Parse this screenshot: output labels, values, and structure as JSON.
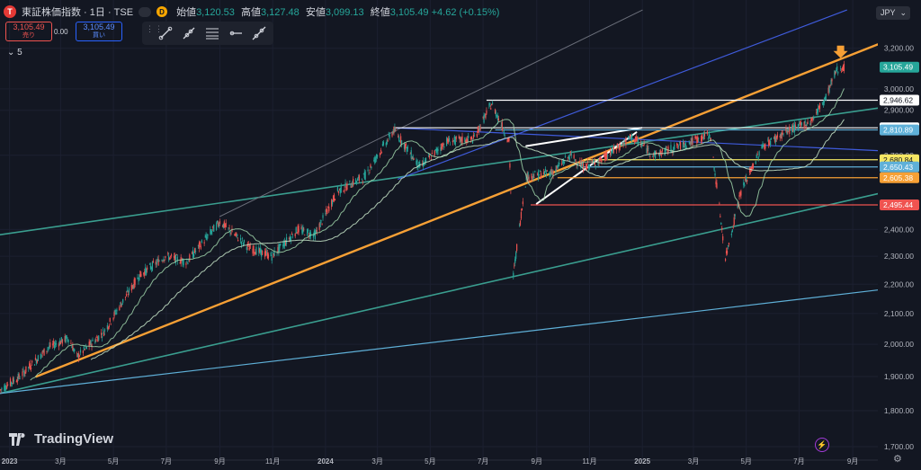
{
  "header": {
    "logo_letter": "T",
    "symbol": "東証株価指数 · 1日 · TSE",
    "interval_badge": "D",
    "ohlc": [
      {
        "label": "始値",
        "value": "3,120.53"
      },
      {
        "label": "高値",
        "value": "3,127.48"
      },
      {
        "label": "安値",
        "value": "3,099.13"
      },
      {
        "label": "終値",
        "value": "3,105.49"
      }
    ],
    "change": "+4.62 (+0.15%)"
  },
  "trade": {
    "sell_price": "3,105.49",
    "sell_label": "売り",
    "spread": "0.00",
    "buy_price": "3,105.49",
    "buy_label": "買い"
  },
  "indicator_toggle": "5",
  "toolbar": {
    "grip": "⋮⋮",
    "tools": [
      "trend-line-tool",
      "ray-tool",
      "horizontal-lines-tool",
      "horizontal-ray-tool",
      "extended-line-tool"
    ]
  },
  "currency": "JPY",
  "brand": "TradingView",
  "colors": {
    "background": "#131722",
    "up": "#26a69a",
    "down": "#ef5350",
    "orange": "#f7a035",
    "teal": "#3a9e8f",
    "blue": "#3f5bdb"
  },
  "chart_data": {
    "type": "candlestick",
    "y_scale": "log",
    "ylim": [
      1700,
      3240
    ],
    "y_ticks": [
      {
        "value": 3200,
        "label": "3,200.00"
      },
      {
        "value": 3000,
        "label": "3,000.00"
      },
      {
        "value": 2900,
        "label": "2,900.00"
      },
      {
        "value": 2700,
        "label": "2,700.00"
      },
      {
        "value": 2400,
        "label": "2,400.00"
      },
      {
        "value": 2300,
        "label": "2,300.00"
      },
      {
        "value": 2200,
        "label": "2,200.00"
      },
      {
        "value": 2100,
        "label": "2,100.00"
      },
      {
        "value": 2000,
        "label": "2,000.00"
      },
      {
        "value": 1900,
        "label": "1,900.00"
      },
      {
        "value": 1800,
        "label": "1,800.00"
      },
      {
        "value": 1700,
        "label": "1,700.00"
      }
    ],
    "x_ticks": [
      {
        "date": "2023-01-01",
        "label": "2023",
        "bold": true
      },
      {
        "date": "2023-03-01",
        "label": "3月"
      },
      {
        "date": "2023-05-01",
        "label": "5月"
      },
      {
        "date": "2023-07-01",
        "label": "7月"
      },
      {
        "date": "2023-09-01",
        "label": "9月"
      },
      {
        "date": "2023-11-01",
        "label": "11月"
      },
      {
        "date": "2024-01-01",
        "label": "2024",
        "bold": true
      },
      {
        "date": "2024-03-01",
        "label": "3月"
      },
      {
        "date": "2024-05-01",
        "label": "5月"
      },
      {
        "date": "2024-07-01",
        "label": "7月"
      },
      {
        "date": "2024-09-01",
        "label": "9月"
      },
      {
        "date": "2024-11-01",
        "label": "11月"
      },
      {
        "date": "2025-01-01",
        "label": "2025",
        "bold": true
      },
      {
        "date": "2025-03-01",
        "label": "3月"
      },
      {
        "date": "2025-05-01",
        "label": "5月"
      },
      {
        "date": "2025-07-01",
        "label": "7月"
      },
      {
        "date": "2025-09-01",
        "label": "9月"
      }
    ],
    "xlim": [
      "2022-12-21",
      "2025-09-30"
    ],
    "close_path": [
      [
        "2022-12-21",
        1860
      ],
      [
        "2023-01-13",
        1900
      ],
      [
        "2023-02-15",
        1990
      ],
      [
        "2023-03-10",
        2020
      ],
      [
        "2023-03-20",
        1960
      ],
      [
        "2023-04-20",
        2040
      ],
      [
        "2023-05-31",
        2230
      ],
      [
        "2023-06-30",
        2300
      ],
      [
        "2023-07-25",
        2280
      ],
      [
        "2023-09-01",
        2430
      ],
      [
        "2023-10-05",
        2330
      ],
      [
        "2023-10-31",
        2300
      ],
      [
        "2023-11-30",
        2400
      ],
      [
        "2023-12-20",
        2380
      ],
      [
        "2024-01-15",
        2550
      ],
      [
        "2024-02-15",
        2610
      ],
      [
        "2024-03-20",
        2810
      ],
      [
        "2024-04-19",
        2650
      ],
      [
        "2024-05-20",
        2760
      ],
      [
        "2024-06-20",
        2770
      ],
      [
        "2024-07-11",
        2930
      ],
      [
        "2024-07-31",
        2760
      ],
      [
        "2024-08-05",
        2230
      ],
      [
        "2024-08-20",
        2610
      ],
      [
        "2024-09-20",
        2630
      ],
      [
        "2024-10-10",
        2700
      ],
      [
        "2024-10-25",
        2650
      ],
      [
        "2024-11-15",
        2680
      ],
      [
        "2024-12-20",
        2780
      ],
      [
        "2025-01-15",
        2700
      ],
      [
        "2025-02-20",
        2750
      ],
      [
        "2025-03-20",
        2790
      ],
      [
        "2025-04-07",
        2290
      ],
      [
        "2025-04-25",
        2550
      ],
      [
        "2025-05-20",
        2740
      ],
      [
        "2025-06-20",
        2810
      ],
      [
        "2025-07-15",
        2850
      ],
      [
        "2025-08-01",
        2960
      ],
      [
        "2025-08-13",
        3090
      ],
      [
        "2025-08-22",
        3105
      ]
    ],
    "last_price": {
      "value": 3105.49,
      "label": "3,105.49"
    },
    "horizontal_levels": [
      {
        "value": 2946.62,
        "label": "2,946.62",
        "color": "#ffffff",
        "from": "2024-07-05"
      },
      {
        "value": 2820.4,
        "label": "2,820.40",
        "color": "#ffffff",
        "from": "2024-03-20"
      },
      {
        "value": 2810.89,
        "label": "2,810.89",
        "color": "#5fb0d8",
        "from": "2024-07-15"
      },
      {
        "value": 2680.84,
        "label": "2,680.84",
        "color": "#f5e663",
        "from": "2024-10-25"
      },
      {
        "value": 2650.43,
        "label": "2,650.43",
        "color": "#5fb0d8",
        "from": "2024-10-25"
      },
      {
        "value": 2605.38,
        "label": "2,605.38",
        "color": "#f7a035",
        "from": "2024-09-25"
      },
      {
        "value": 2495.44,
        "label": "2,495.44",
        "color": "#ef5350",
        "from": "2024-08-25"
      }
    ],
    "trend_lines": [
      {
        "name": "orange-support",
        "color": "#f7a035",
        "width": 2.4,
        "p1": [
          "2023-02-01",
          1900
        ],
        "p2": [
          "2025-09-30",
          3220
        ]
      },
      {
        "name": "teal-upper",
        "color": "#3a9e8f",
        "width": 1.6,
        "p1": [
          "2022-12-21",
          2380
        ],
        "p2": [
          "2025-09-30",
          2910
        ]
      },
      {
        "name": "teal-lower",
        "color": "#3a9e8f",
        "width": 1.6,
        "p1": [
          "2022-12-21",
          1850
        ],
        "p2": [
          "2025-09-30",
          2540
        ]
      },
      {
        "name": "lightblue-base",
        "color": "#5fb0d8",
        "width": 1.2,
        "p1": [
          "2022-12-21",
          1850
        ],
        "p2": [
          "2025-09-30",
          2180
        ]
      },
      {
        "name": "blue-channel",
        "color": "#3f5bdb",
        "width": 1.2,
        "p1": [
          "2024-03-25",
          2600
        ],
        "p2": [
          "2025-08-25",
          3400
        ]
      },
      {
        "name": "gray-channel",
        "color": "#6b6f7a",
        "width": 1.0,
        "p1": [
          "2023-09-01",
          2450
        ],
        "p2": [
          "2025-01-01",
          3400
        ]
      },
      {
        "name": "blue-flat",
        "color": "#3f5bdb",
        "width": 1.2,
        "p1": [
          "2024-03-20",
          2820
        ],
        "p2": [
          "2025-09-30",
          2720
        ]
      },
      {
        "name": "white-upper-wedge",
        "color": "#ffffff",
        "width": 2,
        "p1": [
          "2024-08-20",
          2740
        ],
        "p2": [
          "2024-12-31",
          2820
        ]
      },
      {
        "name": "white-lower-wedge",
        "color": "#ffffff",
        "width": 2,
        "p1": [
          "2024-09-01",
          2500
        ],
        "p2": [
          "2024-12-25",
          2800
        ]
      }
    ],
    "annotations": [
      {
        "type": "arrow-down",
        "color": "#f7a035",
        "date": "2025-08-18",
        "value": 3150
      }
    ]
  }
}
